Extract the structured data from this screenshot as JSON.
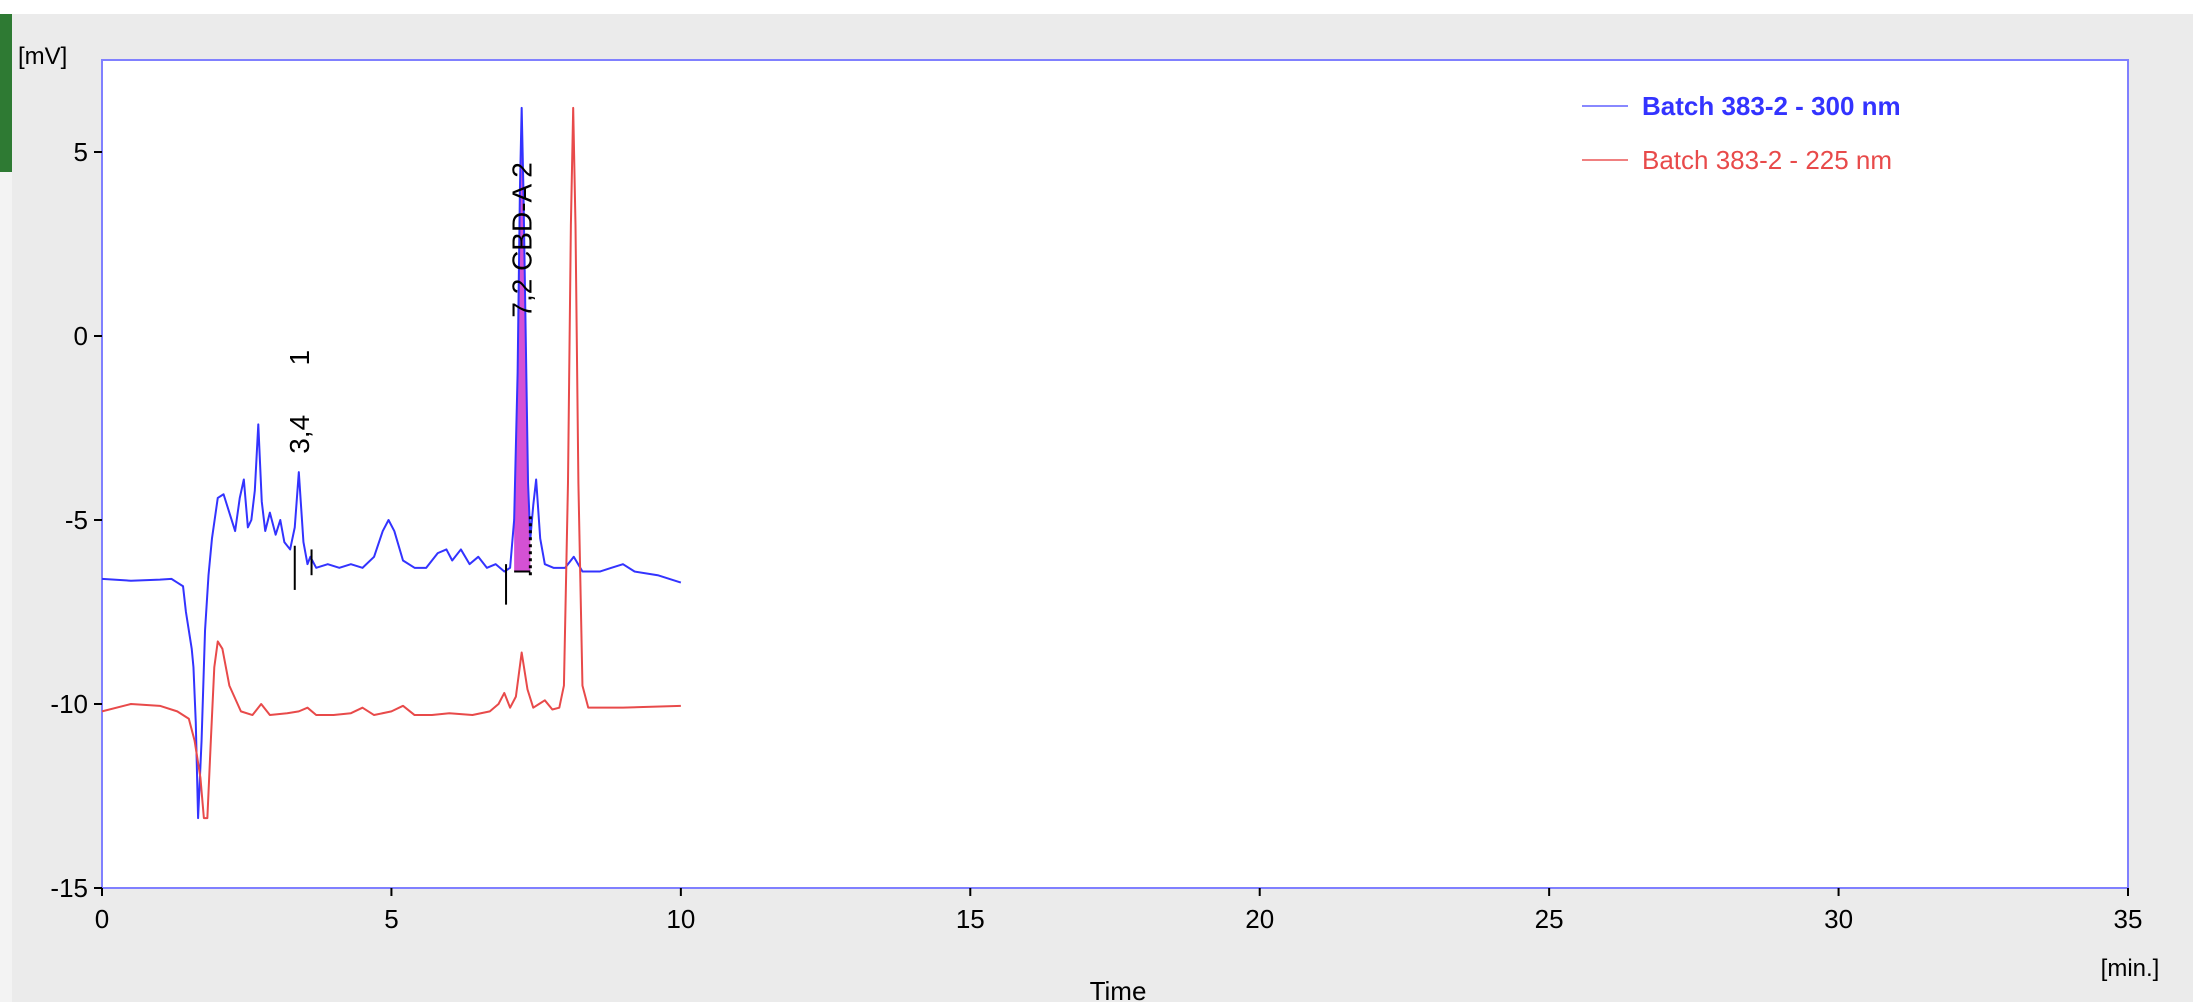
{
  "chart_data": {
    "type": "line",
    "xlabel": "Time",
    "xunit": "[min.]",
    "yunit": "[mV]",
    "xlim": [
      0,
      35
    ],
    "ylim": [
      -15,
      8
    ],
    "x_ticks": [
      0,
      5,
      10,
      15,
      20,
      25,
      30,
      35
    ],
    "y_ticks": [
      5,
      0,
      -5,
      -10,
      -15
    ],
    "legend_position": "top-right",
    "series": [
      {
        "name": "Batch 383-2 - 300 nm",
        "color": "#3333ff",
        "bold": true,
        "points": [
          [
            0.0,
            -6.6
          ],
          [
            0.5,
            -6.65
          ],
          [
            1.0,
            -6.62
          ],
          [
            1.2,
            -6.6
          ],
          [
            1.3,
            -6.7
          ],
          [
            1.4,
            -6.8
          ],
          [
            1.45,
            -7.5
          ],
          [
            1.5,
            -8.0
          ],
          [
            1.55,
            -8.5
          ],
          [
            1.58,
            -9.0
          ],
          [
            1.62,
            -10.5
          ],
          [
            1.66,
            -13.1
          ],
          [
            1.72,
            -11.0
          ],
          [
            1.78,
            -8.0
          ],
          [
            1.84,
            -6.5
          ],
          [
            1.9,
            -5.5
          ],
          [
            2.0,
            -4.4
          ],
          [
            2.1,
            -4.3
          ],
          [
            2.2,
            -4.8
          ],
          [
            2.3,
            -5.3
          ],
          [
            2.38,
            -4.4
          ],
          [
            2.45,
            -3.9
          ],
          [
            2.52,
            -5.2
          ],
          [
            2.58,
            -5.0
          ],
          [
            2.64,
            -4.2
          ],
          [
            2.7,
            -2.4
          ],
          [
            2.76,
            -4.5
          ],
          [
            2.82,
            -5.3
          ],
          [
            2.9,
            -4.8
          ],
          [
            3.0,
            -5.4
          ],
          [
            3.08,
            -5.0
          ],
          [
            3.15,
            -5.6
          ],
          [
            3.25,
            -5.8
          ],
          [
            3.33,
            -5.2
          ],
          [
            3.4,
            -3.7
          ],
          [
            3.48,
            -5.6
          ],
          [
            3.55,
            -6.2
          ],
          [
            3.6,
            -6.0
          ],
          [
            3.7,
            -6.3
          ],
          [
            3.9,
            -6.2
          ],
          [
            4.1,
            -6.3
          ],
          [
            4.3,
            -6.2
          ],
          [
            4.5,
            -6.3
          ],
          [
            4.7,
            -6.0
          ],
          [
            4.85,
            -5.3
          ],
          [
            4.95,
            -5.0
          ],
          [
            5.05,
            -5.3
          ],
          [
            5.2,
            -6.1
          ],
          [
            5.4,
            -6.3
          ],
          [
            5.6,
            -6.3
          ],
          [
            5.8,
            -5.9
          ],
          [
            5.95,
            -5.8
          ],
          [
            6.05,
            -6.1
          ],
          [
            6.2,
            -5.8
          ],
          [
            6.35,
            -6.2
          ],
          [
            6.5,
            -6.0
          ],
          [
            6.65,
            -6.3
          ],
          [
            6.8,
            -6.2
          ],
          [
            6.95,
            -6.4
          ],
          [
            7.05,
            -6.3
          ],
          [
            7.12,
            -5.0
          ],
          [
            7.18,
            -1.0
          ],
          [
            7.22,
            4.0
          ],
          [
            7.25,
            6.2
          ],
          [
            7.28,
            4.0
          ],
          [
            7.32,
            0.0
          ],
          [
            7.36,
            -4.0
          ],
          [
            7.4,
            -5.5
          ],
          [
            7.45,
            -4.6
          ],
          [
            7.5,
            -3.9
          ],
          [
            7.57,
            -5.5
          ],
          [
            7.65,
            -6.2
          ],
          [
            7.8,
            -6.3
          ],
          [
            8.0,
            -6.3
          ],
          [
            8.15,
            -6.0
          ],
          [
            8.3,
            -6.4
          ],
          [
            8.6,
            -6.4
          ],
          [
            8.8,
            -6.3
          ],
          [
            9.0,
            -6.2
          ],
          [
            9.2,
            -6.4
          ],
          [
            9.6,
            -6.5
          ],
          [
            10.0,
            -6.7
          ]
        ]
      },
      {
        "name": "Batch 383-2 - 225 nm",
        "color": "#e84a4a",
        "bold": false,
        "points": [
          [
            0.0,
            -10.2
          ],
          [
            0.5,
            -10.0
          ],
          [
            1.0,
            -10.05
          ],
          [
            1.3,
            -10.2
          ],
          [
            1.5,
            -10.4
          ],
          [
            1.6,
            -11.0
          ],
          [
            1.7,
            -12.0
          ],
          [
            1.76,
            -13.1
          ],
          [
            1.82,
            -13.1
          ],
          [
            1.88,
            -11.0
          ],
          [
            1.94,
            -9.0
          ],
          [
            2.0,
            -8.3
          ],
          [
            2.08,
            -8.5
          ],
          [
            2.2,
            -9.5
          ],
          [
            2.4,
            -10.2
          ],
          [
            2.6,
            -10.3
          ],
          [
            2.75,
            -10.0
          ],
          [
            2.9,
            -10.3
          ],
          [
            3.2,
            -10.25
          ],
          [
            3.4,
            -10.2
          ],
          [
            3.55,
            -10.1
          ],
          [
            3.7,
            -10.3
          ],
          [
            4.0,
            -10.3
          ],
          [
            4.3,
            -10.25
          ],
          [
            4.5,
            -10.1
          ],
          [
            4.7,
            -10.3
          ],
          [
            5.0,
            -10.2
          ],
          [
            5.2,
            -10.05
          ],
          [
            5.4,
            -10.3
          ],
          [
            5.7,
            -10.3
          ],
          [
            6.0,
            -10.25
          ],
          [
            6.4,
            -10.3
          ],
          [
            6.7,
            -10.2
          ],
          [
            6.85,
            -10.0
          ],
          [
            6.95,
            -9.7
          ],
          [
            7.05,
            -10.1
          ],
          [
            7.15,
            -9.8
          ],
          [
            7.25,
            -8.6
          ],
          [
            7.35,
            -9.6
          ],
          [
            7.45,
            -10.1
          ],
          [
            7.55,
            -10.0
          ],
          [
            7.65,
            -9.9
          ],
          [
            7.78,
            -10.15
          ],
          [
            7.9,
            -10.1
          ],
          [
            7.98,
            -9.5
          ],
          [
            8.05,
            -4.0
          ],
          [
            8.1,
            3.0
          ],
          [
            8.14,
            6.2
          ],
          [
            8.18,
            3.0
          ],
          [
            8.23,
            -4.0
          ],
          [
            8.3,
            -9.5
          ],
          [
            8.4,
            -10.1
          ],
          [
            9.0,
            -10.1
          ],
          [
            10.0,
            -10.05
          ]
        ]
      }
    ],
    "peak_labels": [
      {
        "text": "3,4",
        "x": 3.4
      },
      {
        "text": "1",
        "x": 3.4
      },
      {
        "text": "7,2 CBD-A",
        "x": 7.25
      },
      {
        "text": "2",
        "x": 7.25
      }
    ],
    "shaded_peak": {
      "x_start": 7.12,
      "x_end": 7.4,
      "baseline": -6.4,
      "color": "#cc33cc"
    }
  }
}
